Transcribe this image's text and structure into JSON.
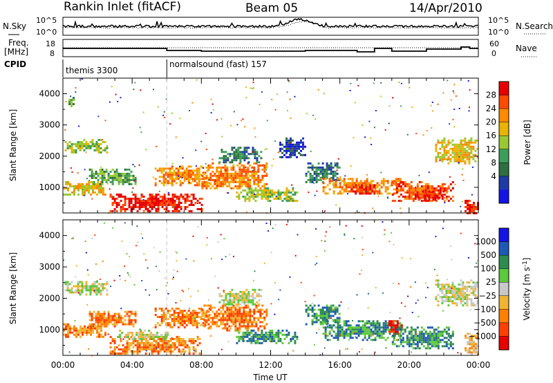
{
  "header": {
    "station": "Rankin Inlet (fitACF)",
    "beam": "Beam 05",
    "date": "14/Apr/2010"
  },
  "nsky_panel": {
    "left_label": "N.Sky",
    "right_label": "N.Search",
    "left_ticks": [
      "10^5",
      "10^0"
    ],
    "right_ticks": [
      "10^5",
      "10^0"
    ]
  },
  "freq_panel": {
    "left_label_top": "Freq.",
    "left_label_bottom": "[MHz]",
    "right_label": "Nave",
    "left_ticks": [
      "18",
      "8"
    ],
    "right_ticks": [
      "60",
      "0"
    ]
  },
  "cpid_panel": {
    "label": "CPID",
    "segments": [
      {
        "name": "themis 3300",
        "start_hour": 0
      },
      {
        "name": "normalsound (fast) 157",
        "start_hour": 6
      }
    ]
  },
  "chart_data": [
    {
      "type": "heatmap",
      "name": "Power",
      "ylabel": "Slant Range [km]",
      "xlabel": "",
      "xlim": [
        0,
        24
      ],
      "ylim": [
        180,
        4500
      ],
      "y_ticks": [
        1000,
        2000,
        3000,
        4000
      ],
      "colorbar": {
        "label": "Power [dB]",
        "ticks": [
          "28",
          "24",
          "20",
          "16",
          "12",
          "8",
          "4"
        ],
        "colors": [
          "#e80000",
          "#ff4a00",
          "#ff8a00",
          "#e8b400",
          "#9ac832",
          "#3c9e5a",
          "#2e7040",
          "#1e3ca8",
          "#1414e6"
        ]
      },
      "regions": [
        {
          "t0": 0.1,
          "t1": 2.6,
          "r0": 2150,
          "r1": 2550,
          "level": 4
        },
        {
          "t0": 0.2,
          "t1": 0.6,
          "r0": 3600,
          "r1": 3900,
          "level": 3
        },
        {
          "t0": 0.0,
          "t1": 2.5,
          "r0": 800,
          "r1": 1200,
          "level": 5
        },
        {
          "t0": 1.5,
          "t1": 4.2,
          "r0": 1100,
          "r1": 1600,
          "level": 3
        },
        {
          "t0": 2.7,
          "t1": 8.0,
          "r0": 250,
          "r1": 800,
          "level": 8
        },
        {
          "t0": 5.3,
          "t1": 8.5,
          "r0": 1100,
          "r1": 1700,
          "level": 6
        },
        {
          "t0": 8.0,
          "t1": 11.8,
          "r0": 1000,
          "r1": 1800,
          "level": 6
        },
        {
          "t0": 9.0,
          "t1": 11.5,
          "r0": 1800,
          "r1": 2300,
          "level": 2
        },
        {
          "t0": 10.0,
          "t1": 13.5,
          "r0": 600,
          "r1": 1000,
          "level": 4
        },
        {
          "t0": 12.5,
          "t1": 14.0,
          "r0": 2000,
          "r1": 2600,
          "level": 1
        },
        {
          "t0": 14.0,
          "t1": 16.0,
          "r0": 1200,
          "r1": 1800,
          "level": 2
        },
        {
          "t0": 15.0,
          "t1": 19.5,
          "r0": 800,
          "r1": 1300,
          "level": 6
        },
        {
          "t0": 16.5,
          "t1": 18.0,
          "r0": 800,
          "r1": 1100,
          "level": 8
        },
        {
          "t0": 19.0,
          "t1": 22.5,
          "r0": 600,
          "r1": 1200,
          "level": 7
        },
        {
          "t0": 20.5,
          "t1": 22.0,
          "r0": 600,
          "r1": 900,
          "level": 8
        },
        {
          "t0": 21.5,
          "t1": 24.0,
          "r0": 1800,
          "r1": 2600,
          "level": 5
        },
        {
          "t0": 23.2,
          "t1": 24.0,
          "r0": 200,
          "r1": 600,
          "level": 8
        }
      ]
    },
    {
      "type": "heatmap",
      "name": "Velocity",
      "ylabel": "Slant Range [km]",
      "xlabel": "Time UT",
      "xlim": [
        0,
        24
      ],
      "ylim": [
        180,
        4500
      ],
      "x_ticks": [
        "00:00",
        "04:00",
        "08:00",
        "12:00",
        "16:00",
        "20:00",
        "00:00"
      ],
      "y_ticks": [
        1000,
        2000,
        3000,
        4000
      ],
      "colorbar": {
        "label_main": "Velocity",
        "label_unit": "[m s",
        "label_exp": "-1",
        "label_close": "]",
        "ticks": [
          "1000",
          "500",
          "100",
          "25",
          "−25",
          "−100",
          "−500",
          "−1000"
        ],
        "colors": [
          "#1414e6",
          "#1e5ab4",
          "#2e8c50",
          "#5cc83c",
          "#c8c8c8",
          "#f0b432",
          "#ff8000",
          "#ff4000",
          "#e80000"
        ]
      },
      "regions": [
        {
          "t0": 0.1,
          "t1": 2.6,
          "r0": 2150,
          "r1": 2550,
          "level": 4
        },
        {
          "t0": 0.0,
          "t1": 2.5,
          "r0": 800,
          "r1": 1200,
          "level": 2
        },
        {
          "t0": 1.5,
          "t1": 4.2,
          "r0": 1100,
          "r1": 1600,
          "level": 2
        },
        {
          "t0": 2.7,
          "t1": 8.0,
          "r0": 250,
          "r1": 800,
          "level": 2
        },
        {
          "t0": 3.0,
          "t1": 6.0,
          "r0": 700,
          "r1": 1000,
          "level": 4
        },
        {
          "t0": 5.3,
          "t1": 8.5,
          "r0": 1100,
          "r1": 1700,
          "level": 2
        },
        {
          "t0": 8.0,
          "t1": 11.8,
          "r0": 1000,
          "r1": 1800,
          "level": 2
        },
        {
          "t0": 9.0,
          "t1": 11.5,
          "r0": 1800,
          "r1": 2300,
          "level": 4
        },
        {
          "t0": 10.0,
          "t1": 13.5,
          "r0": 600,
          "r1": 1000,
          "level": 6
        },
        {
          "t0": 14.0,
          "t1": 16.0,
          "r0": 1200,
          "r1": 1800,
          "level": 6
        },
        {
          "t0": 15.0,
          "t1": 19.5,
          "r0": 700,
          "r1": 1300,
          "level": 6
        },
        {
          "t0": 18.8,
          "t1": 19.6,
          "r0": 900,
          "r1": 1300,
          "level": 0
        },
        {
          "t0": 19.0,
          "t1": 22.5,
          "r0": 400,
          "r1": 1100,
          "level": 6
        },
        {
          "t0": 21.5,
          "t1": 24.0,
          "r0": 1800,
          "r1": 2600,
          "level": 4
        },
        {
          "t0": 23.2,
          "t1": 24.0,
          "r0": 200,
          "r1": 900,
          "level": 3
        }
      ]
    }
  ]
}
